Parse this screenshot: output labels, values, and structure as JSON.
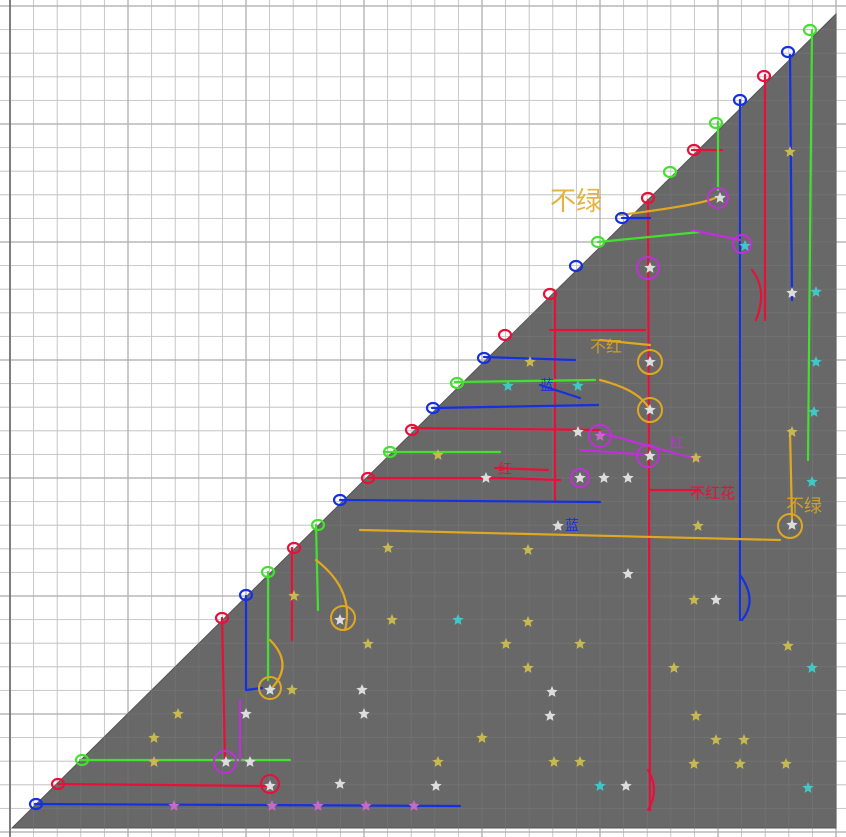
{
  "colors": {
    "background": "#ffffff",
    "grid_minor": "#e2e2e2",
    "grid_major": "#c4c4c4",
    "triangle_fill": "#686868",
    "red": "#e8103a",
    "blue": "#1530e0",
    "green": "#44e030",
    "orange": "#e0a820",
    "magenta": "#c030d8",
    "star_white": "#dddddd",
    "star_yellow": "#c8b850",
    "star_cyan": "#40c8c8",
    "star_pink": "#c868c8"
  },
  "annotations": {
    "buluz_top": "不绿",
    "buhong": "不红",
    "hong": "红",
    "hong2": "红",
    "bu_hong_flower": "不红花",
    "buluz_right": "不绿",
    "lan": "蓝",
    "lan2": "蓝"
  }
}
